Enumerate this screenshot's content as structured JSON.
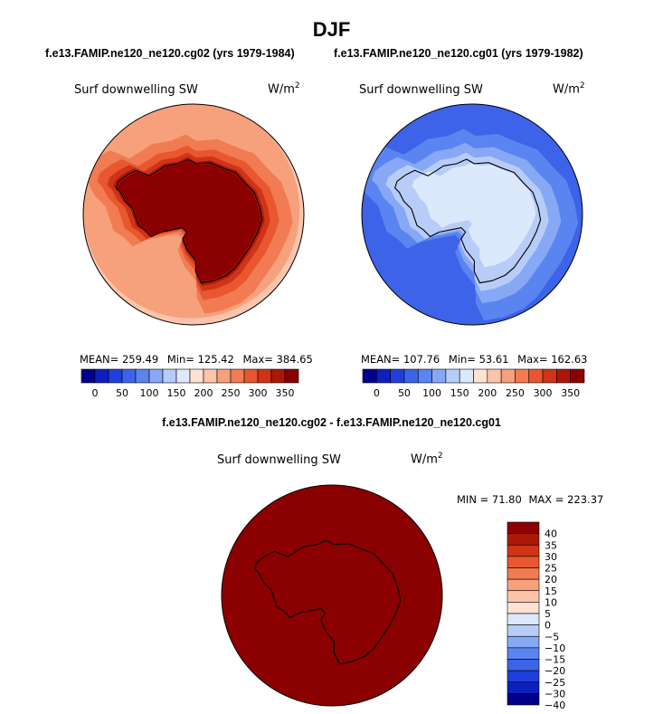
{
  "figure": {
    "title": "DJF",
    "header_left": "f.e13.FAMIP.ne120_ne120.cg02 (yrs 1979-1984)",
    "header_right": "f.e13.FAMIP.ne120_ne120.cg01 (yrs 1979-1982)",
    "diff_title": "f.e13.FAMIP.ne120_ne120.cg02 - f.e13.FAMIP.ne120_ne120.cg01"
  },
  "colors": {
    "abs_scale": [
      "#00008b",
      "#0d1fbf",
      "#1f3fdc",
      "#3d63e8",
      "#5a84f0",
      "#87a8f5",
      "#b8ccf8",
      "#dce8fb",
      "#ffe2d2",
      "#fcc4aa",
      "#f7a07c",
      "#f17b52",
      "#e8572f",
      "#cf3417",
      "#ab1808",
      "#8b0000"
    ],
    "diff_scale": [
      "#00008b",
      "#0d1fbf",
      "#1f3fdc",
      "#3d63e8",
      "#5a84f0",
      "#87a8f5",
      "#b8ccf8",
      "#dce8fb",
      "#ffe2d2",
      "#fcc4aa",
      "#f7a07c",
      "#f17b52",
      "#e8572f",
      "#cf3417",
      "#ab1808",
      "#8b0000"
    ]
  },
  "chart_data": [
    {
      "type": "heatmap",
      "projection": "south-polar",
      "variable": "Surf downwelling SW",
      "units_base": "W/m",
      "units_exp": "2",
      "stats": {
        "mean_label": "MEAN=",
        "mean": "259.49",
        "min_label": "Min=",
        "min": "125.42",
        "max_label": "Max=",
        "max": "384.65"
      },
      "colorbar_ticks": [
        "0",
        "50",
        "100",
        "150",
        "200",
        "250",
        "300",
        "350"
      ],
      "field_levels": [
        10,
        11,
        12,
        13,
        14,
        15
      ]
    },
    {
      "type": "heatmap",
      "projection": "south-polar",
      "variable": "Surf downwelling SW",
      "units_base": "W/m",
      "units_exp": "2",
      "stats": {
        "mean_label": "MEAN=",
        "mean": "107.76",
        "min_label": "Min=",
        "min": "53.61",
        "max_label": "Max=",
        "max": "162.63"
      },
      "colorbar_ticks": [
        "0",
        "50",
        "100",
        "150",
        "200",
        "250",
        "300",
        "350"
      ],
      "field_levels": [
        3,
        4,
        5,
        6,
        7
      ]
    },
    {
      "type": "heatmap",
      "projection": "south-polar",
      "variable": "Surf downwelling SW",
      "units_base": "W/m",
      "units_exp": "2",
      "stats": {
        "min_label": "MIN =",
        "min": "71.80",
        "max_label": "MAX =",
        "max": "223.37"
      },
      "colorbar_ticks": [
        "40",
        "35",
        "30",
        "25",
        "20",
        "15",
        "10",
        "5",
        "0",
        "−5",
        "−10",
        "−15",
        "−20",
        "−25",
        "−30",
        "−40"
      ],
      "field_levels": [
        15
      ]
    }
  ]
}
